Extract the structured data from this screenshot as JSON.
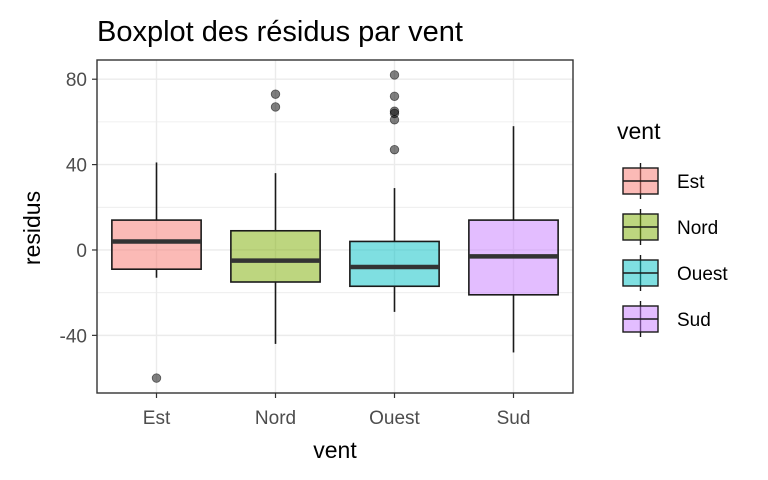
{
  "chart_data": {
    "type": "boxplot",
    "title": "Boxplot des résidus par vent",
    "xlabel": "vent",
    "ylabel": "residus",
    "ylim": [
      -67,
      89
    ],
    "yticks": [
      -40,
      0,
      40,
      80
    ],
    "grid": true,
    "legend": {
      "title": "vent",
      "position": "right"
    },
    "categories": [
      "Est",
      "Nord",
      "Ouest",
      "Sud"
    ],
    "boxes": [
      {
        "name": "Est",
        "color": "#F8766D",
        "whisker_low": -13,
        "q1": -9,
        "median": 4,
        "q3": 14,
        "whisker_high": 41,
        "outliers": [
          -60
        ]
      },
      {
        "name": "Nord",
        "color": "#7CAE00",
        "whisker_low": -44,
        "q1": -15,
        "median": -5,
        "q3": 9,
        "whisker_high": 36,
        "outliers": [
          67,
          73
        ]
      },
      {
        "name": "Ouest",
        "color": "#00BFC4",
        "whisker_low": -29,
        "q1": -17,
        "median": -8,
        "q3": 4,
        "whisker_high": 29,
        "outliers": [
          47,
          61,
          64,
          65,
          72,
          82
        ]
      },
      {
        "name": "Sud",
        "color": "#C77CFF",
        "whisker_low": -48,
        "q1": -21,
        "median": -3,
        "q3": 14,
        "whisker_high": 58,
        "outliers": []
      }
    ]
  }
}
